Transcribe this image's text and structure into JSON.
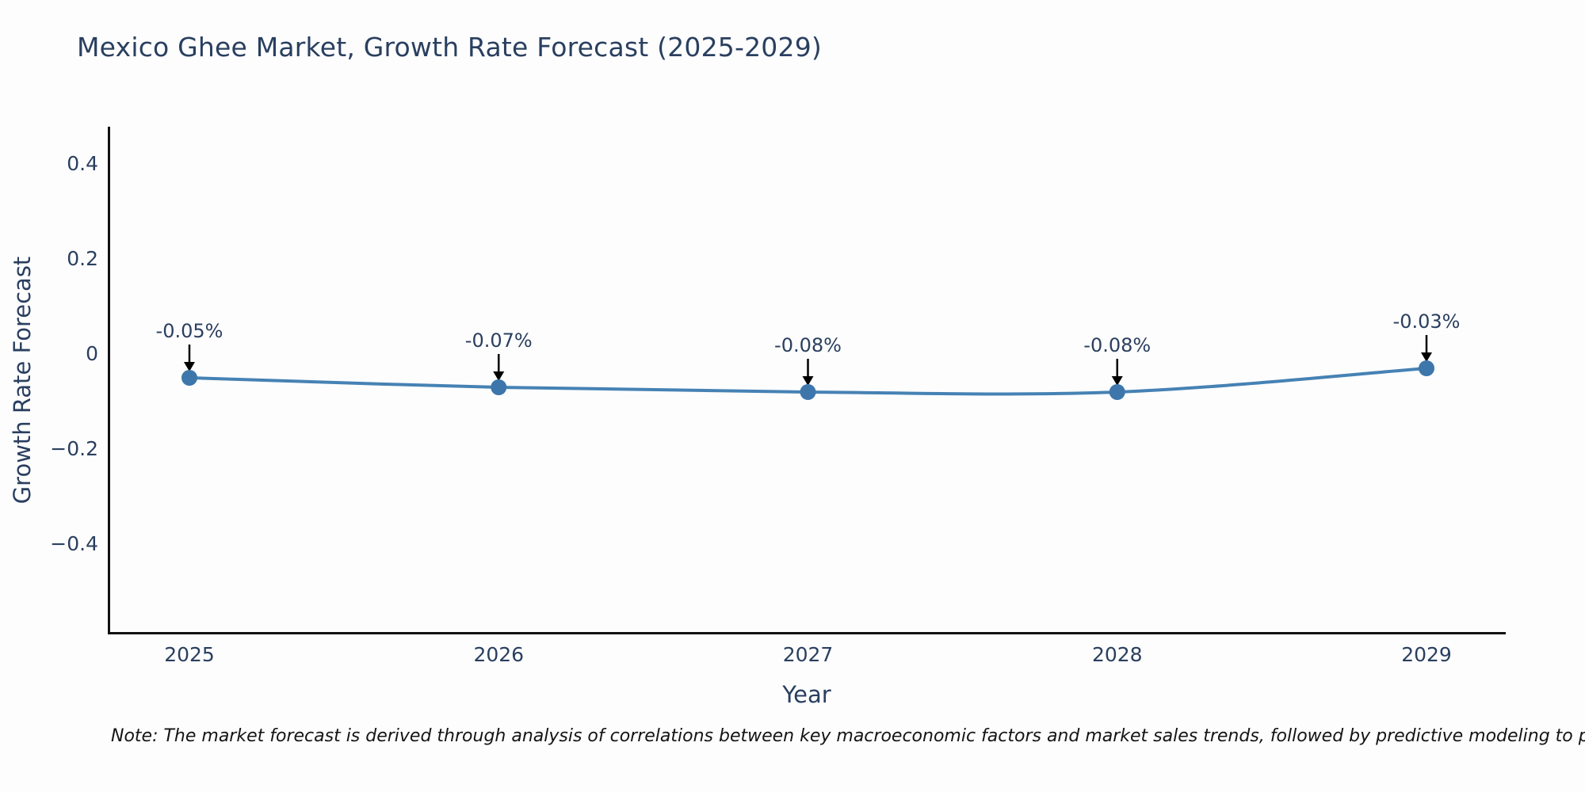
{
  "title": "Mexico Ghee Market, Growth Rate Forecast (2025-2029)",
  "note": "Note: The market forecast is derived through analysis of correlations between key macroeconomic factors and market sales trends, followed by predictive modeling to project future sal",
  "chart_data": {
    "type": "line",
    "title": "Mexico Ghee Market, Growth Rate Forecast (2025-2029)",
    "xlabel": "Year",
    "ylabel": "Growth Rate Forecast",
    "categories": [
      "2025",
      "2026",
      "2027",
      "2028",
      "2029"
    ],
    "values": [
      -0.05,
      -0.07,
      -0.08,
      -0.08,
      -0.03
    ],
    "series": [
      {
        "name": "Growth Rate Forecast",
        "values": [
          -0.05,
          -0.07,
          -0.08,
          -0.08,
          -0.03
        ]
      }
    ],
    "point_annotations": [
      "-0.05%",
      "-0.07%",
      "-0.08%",
      "-0.08%",
      "-0.03%"
    ],
    "y_ticks": [
      0.4,
      0.2,
      0,
      -0.2,
      -0.4
    ],
    "y_tick_labels": [
      "0.4",
      "0.2",
      "0",
      "−0.2",
      "−0.4"
    ],
    "x_tick_labels": [
      "2025",
      "2026",
      "2027",
      "2028",
      "2029"
    ],
    "ylim": [
      -0.59,
      0.48
    ],
    "grid": false,
    "legend_position": "none",
    "line_color": "#4682b4",
    "marker_color": "#3d76ab",
    "axis_color": "#111111",
    "annotation_arrow_color": "#000000",
    "text_color": "#2a3f5f"
  }
}
